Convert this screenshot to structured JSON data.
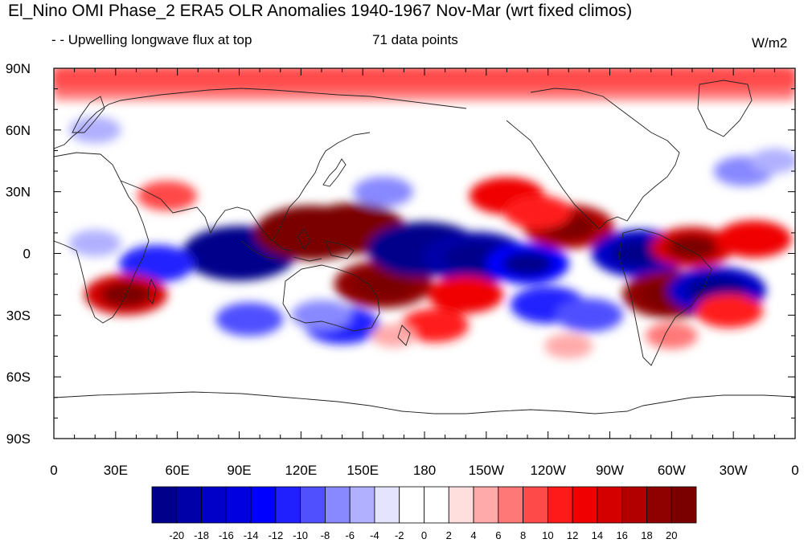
{
  "title": "El_Nino OMI Phase_2 ERA5 OLR Anomalies 1940-1967 Nov-Mar (wrt fixed climos)",
  "subtitle_left": "- - Upwelling longwave flux at top",
  "subtitle_center": "71 data points",
  "units": "W/m2",
  "lat_ticks": [
    {
      "label": "90N",
      "lat": 90
    },
    {
      "label": "60N",
      "lat": 60
    },
    {
      "label": "30N",
      "lat": 30
    },
    {
      "label": "0",
      "lat": 0
    },
    {
      "label": "30S",
      "lat": -30
    },
    {
      "label": "60S",
      "lat": -60
    },
    {
      "label": "90S",
      "lat": -90
    }
  ],
  "lon_ticks": [
    {
      "label": "0",
      "lon": 0
    },
    {
      "label": "30E",
      "lon": 30
    },
    {
      "label": "60E",
      "lon": 60
    },
    {
      "label": "90E",
      "lon": 90
    },
    {
      "label": "120E",
      "lon": 120
    },
    {
      "label": "150E",
      "lon": 150
    },
    {
      "label": "180",
      "lon": 180
    },
    {
      "label": "150W",
      "lon": 210
    },
    {
      "label": "120W",
      "lon": 240
    },
    {
      "label": "90W",
      "lon": 270
    },
    {
      "label": "60W",
      "lon": 300
    },
    {
      "label": "30W",
      "lon": 330
    },
    {
      "label": "0",
      "lon": 360
    }
  ],
  "colorbar": {
    "labels": [
      "-20",
      "-18",
      "-16",
      "-14",
      "-12",
      "-10",
      "-8",
      "-6",
      "-4",
      "-2",
      "0",
      "2",
      "4",
      "6",
      "8",
      "10",
      "12",
      "14",
      "16",
      "18",
      "20"
    ],
    "colors": [
      "#00008b",
      "#0000a8",
      "#0000c8",
      "#0000e0",
      "#0000ff",
      "#2020ff",
      "#5050ff",
      "#8888ff",
      "#b0b0ff",
      "#e4e4ff",
      "#ffffff",
      "#ffffff",
      "#ffdede",
      "#ffaaaa",
      "#ff7878",
      "#ff4a4a",
      "#ff1a1a",
      "#f00000",
      "#d40000",
      "#b20000",
      "#8f0000",
      "#7a0000"
    ]
  },
  "anomalies": [
    {
      "lon": 90,
      "lat": 0,
      "value": -22
    },
    {
      "lon": 125,
      "lat": 10,
      "value": 22
    },
    {
      "lon": 160,
      "lat": -15,
      "value": 18
    },
    {
      "lon": 145,
      "lat": 12,
      "value": 20
    },
    {
      "lon": 180,
      "lat": 2,
      "value": -22
    },
    {
      "lon": 205,
      "lat": -2,
      "value": -20
    },
    {
      "lon": 230,
      "lat": -5,
      "value": -14
    },
    {
      "lon": 95,
      "lat": -32,
      "value": -10
    },
    {
      "lon": 140,
      "lat": -35,
      "value": -12
    },
    {
      "lon": 50,
      "lat": -5,
      "value": -12
    },
    {
      "lon": 35,
      "lat": -20,
      "value": 14
    },
    {
      "lon": 240,
      "lat": -25,
      "value": -12
    },
    {
      "lon": 260,
      "lat": -30,
      "value": -10
    },
    {
      "lon": 200,
      "lat": -20,
      "value": 12
    },
    {
      "lon": 185,
      "lat": -35,
      "value": 10
    },
    {
      "lon": 220,
      "lat": 28,
      "value": 12
    },
    {
      "lon": 250,
      "lat": 13,
      "value": 16
    },
    {
      "lon": 235,
      "lat": 20,
      "value": 10
    },
    {
      "lon": 285,
      "lat": 0,
      "value": -18
    },
    {
      "lon": 310,
      "lat": 3,
      "value": 14
    },
    {
      "lon": 340,
      "lat": 7,
      "value": 12
    },
    {
      "lon": 300,
      "lat": -20,
      "value": 18
    },
    {
      "lon": 322,
      "lat": -18,
      "value": -18
    },
    {
      "lon": 328,
      "lat": -28,
      "value": 10
    },
    {
      "lon": 160,
      "lat": 30,
      "value": -8
    },
    {
      "lon": 130,
      "lat": -30,
      "value": -8
    },
    {
      "lon": 55,
      "lat": 28,
      "value": 8
    },
    {
      "lon": 20,
      "lat": 5,
      "value": -6
    },
    {
      "lon": 20,
      "lat": 60,
      "value": -6
    },
    {
      "lon": 335,
      "lat": 40,
      "value": -8
    },
    {
      "lon": 350,
      "lat": 45,
      "value": -5
    },
    {
      "lon": 165,
      "lat": -40,
      "value": 4
    },
    {
      "lon": 250,
      "lat": -45,
      "value": 5
    },
    {
      "lon": 300,
      "lat": -40,
      "value": 6
    }
  ]
}
